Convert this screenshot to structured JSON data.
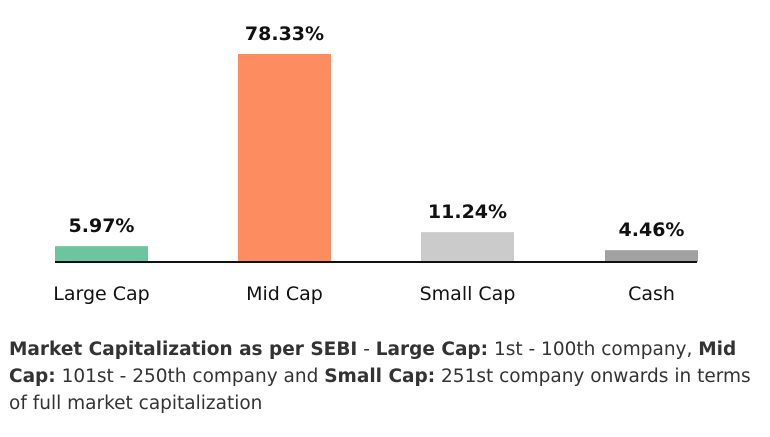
{
  "chart_data": {
    "type": "bar",
    "categories": [
      "Large Cap",
      "Mid Cap",
      "Small Cap",
      "Cash"
    ],
    "values": [
      5.97,
      78.33,
      11.24,
      4.46
    ],
    "value_labels": [
      "5.97%",
      "78.33%",
      "11.24%",
      "4.46%"
    ],
    "colors": [
      "#6cc59c",
      "#fd8c61",
      "#cbcbcb",
      "#a1a1a1"
    ],
    "ylim": [
      0,
      78.33
    ],
    "grid": false,
    "axis_color": "#111111"
  },
  "footnote": {
    "b1": "Market Capitalization as per SEBI",
    "t1": " - ",
    "b2": "Large Cap:",
    "t2": " 1st - 100th company, ",
    "b3": "Mid Cap:",
    "t3": " 101st - 250th company and ",
    "b4": "Small Cap:",
    "t4": " 251st company onwards in terms of full market capitalization"
  }
}
